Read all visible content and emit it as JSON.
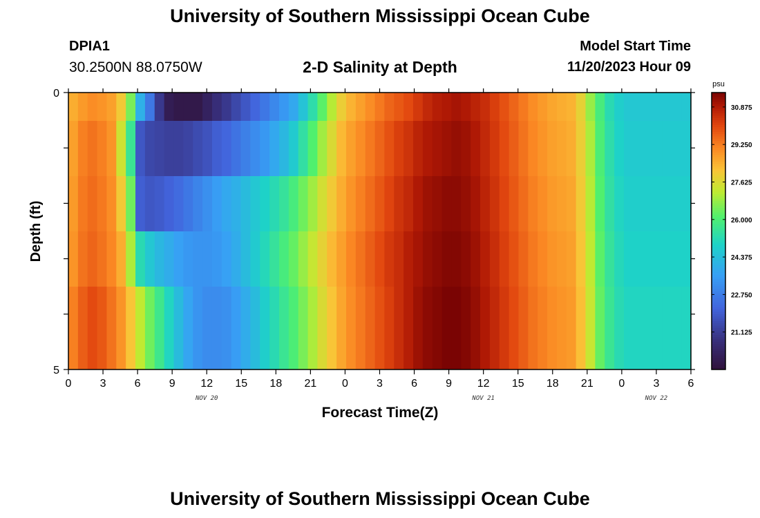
{
  "header": {
    "main_title": "University of Southern Mississippi Ocean Cube",
    "station": "DPIA1",
    "coordinates": "30.2500N  88.0750W",
    "plot_title": "2-D Salinity at Depth",
    "model_start_label": "Model Start Time",
    "model_start_value": "11/20/2023 Hour 09",
    "bottom_title": "University of Southern Mississippi Ocean Cube"
  },
  "chart_data": {
    "type": "heatmap",
    "title": "2-D Salinity at Depth",
    "xlabel": "Forecast Time(Z)",
    "ylabel": "Depth (ft)",
    "x_tick_labels": [
      "0",
      "3",
      "6",
      "9",
      "12",
      "15",
      "18",
      "21",
      "0",
      "3",
      "6",
      "9",
      "12",
      "15",
      "18",
      "21",
      "0",
      "3",
      "6"
    ],
    "date_labels": [
      {
        "label": "NOV 20",
        "at_tick": 4
      },
      {
        "label": "NOV 21",
        "at_tick": 12
      },
      {
        "label": "NOV 22",
        "at_tick": 17
      }
    ],
    "x_range_hours": [
      0,
      54
    ],
    "y_tick_labels": [
      "0",
      "5"
    ],
    "ylim": [
      0,
      5
    ],
    "depth_layers": 5,
    "colorbar": {
      "unit": "psu",
      "min": 19.5,
      "max": 31.5,
      "tick_labels": [
        "30.875",
        "29.250",
        "27.625",
        "26.000",
        "24.375",
        "22.750",
        "21.125"
      ],
      "tick_values": [
        30.875,
        29.25,
        27.625,
        26.0,
        24.375,
        22.75,
        21.125
      ]
    },
    "salinity_psu_by_layer_hourly": [
      [
        28.5,
        28.8,
        29.0,
        28.9,
        28.7,
        28.0,
        26.5,
        24.0,
        22.6,
        21.0,
        20.0,
        19.8,
        19.8,
        19.8,
        20.2,
        20.7,
        21.0,
        21.4,
        21.8,
        22.2,
        22.6,
        23.0,
        23.4,
        23.8,
        24.5,
        25.3,
        26.2,
        27.1,
        27.9,
        28.4,
        28.7,
        29.0,
        29.3,
        29.6,
        29.8,
        30.0,
        30.3,
        30.6,
        30.8,
        30.9,
        31.0,
        30.9,
        30.7,
        30.5,
        30.2,
        29.9,
        29.6,
        29.3,
        29.0,
        28.8,
        28.6,
        28.5,
        28.4,
        27.8,
        26.8,
        25.9,
        25.2,
        24.8,
        24.6,
        24.6,
        24.6,
        24.6,
        24.6,
        24.6,
        24.6
      ],
      [
        28.7,
        29.2,
        29.4,
        29.2,
        28.9,
        27.4,
        25.6,
        21.8,
        21.4,
        21.3,
        21.2,
        21.2,
        21.3,
        21.5,
        21.7,
        22.0,
        22.2,
        22.5,
        22.8,
        23.1,
        23.4,
        23.8,
        24.2,
        24.7,
        25.4,
        26.1,
        26.9,
        27.6,
        28.3,
        28.7,
        29.0,
        29.3,
        29.6,
        29.9,
        30.2,
        30.4,
        30.7,
        30.9,
        31.0,
        31.1,
        31.2,
        31.1,
        30.9,
        30.6,
        30.3,
        30.0,
        29.7,
        29.4,
        29.1,
        28.9,
        28.7,
        28.6,
        28.5,
        27.9,
        27.0,
        26.0,
        25.3,
        24.9,
        24.7,
        24.7,
        24.7,
        24.7,
        24.7,
        24.7,
        24.7
      ],
      [
        28.8,
        29.3,
        29.5,
        29.3,
        29.0,
        28.0,
        26.4,
        22.0,
        21.8,
        21.9,
        22.1,
        22.3,
        22.6,
        22.9,
        23.2,
        23.5,
        23.8,
        24.0,
        24.3,
        24.6,
        24.9,
        25.2,
        25.5,
        25.9,
        26.4,
        26.9,
        27.5,
        28.0,
        28.5,
        28.9,
        29.2,
        29.5,
        29.8,
        30.1,
        30.4,
        30.6,
        30.9,
        31.1,
        31.2,
        31.3,
        31.3,
        31.2,
        31.0,
        30.7,
        30.4,
        30.1,
        29.8,
        29.5,
        29.2,
        29.0,
        28.8,
        28.7,
        28.6,
        28.0,
        27.1,
        26.1,
        25.4,
        25.0,
        24.8,
        24.8,
        24.8,
        24.8,
        24.8,
        24.8,
        24.8
      ],
      [
        28.9,
        29.4,
        29.6,
        29.4,
        29.1,
        28.5,
        27.0,
        25.2,
        24.6,
        24.2,
        23.9,
        23.6,
        23.4,
        23.3,
        23.3,
        23.4,
        23.6,
        23.9,
        24.3,
        24.7,
        25.1,
        25.5,
        25.9,
        26.3,
        26.8,
        27.3,
        27.8,
        28.3,
        28.7,
        29.1,
        29.4,
        29.7,
        30.0,
        30.3,
        30.5,
        30.8,
        31.0,
        31.2,
        31.3,
        31.4,
        31.4,
        31.3,
        31.1,
        30.8,
        30.5,
        30.2,
        29.9,
        29.6,
        29.3,
        29.1,
        28.9,
        28.8,
        28.7,
        28.1,
        27.2,
        26.2,
        25.5,
        25.1,
        24.9,
        24.9,
        24.9,
        24.9,
        24.9,
        24.9,
        24.9
      ],
      [
        29.2,
        29.7,
        30.0,
        29.8,
        29.4,
        28.9,
        28.1,
        27.2,
        26.4,
        25.7,
        25.0,
        24.3,
        23.7,
        23.3,
        23.1,
        23.1,
        23.2,
        23.5,
        23.9,
        24.3,
        24.8,
        25.2,
        25.6,
        26.0,
        26.5,
        27.0,
        27.6,
        28.1,
        28.6,
        29.0,
        29.3,
        29.6,
        29.9,
        30.2,
        30.5,
        30.8,
        31.1,
        31.3,
        31.4,
        31.5,
        31.5,
        31.4,
        31.2,
        30.9,
        30.6,
        30.3,
        30.0,
        29.7,
        29.4,
        29.2,
        29.0,
        28.9,
        28.8,
        28.2,
        27.3,
        26.3,
        25.6,
        25.2,
        25.0,
        25.0,
        25.0,
        25.0,
        25.0,
        25.0,
        25.0
      ]
    ]
  }
}
